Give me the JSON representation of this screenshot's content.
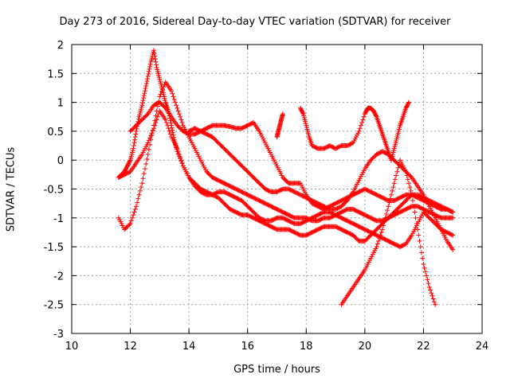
{
  "chart_data": {
    "type": "scatter",
    "title": "Day 273 of 2016, Sidereal Day-to-day VTEC variation (SDTVAR) for receiver",
    "xlabel": "GPS time / hours",
    "ylabel": "SDTVAR / TECUs",
    "xlim": [
      10,
      24
    ],
    "ylim": [
      -3,
      2
    ],
    "x_ticks": [
      "10",
      "12",
      "14",
      "16",
      "18",
      "20",
      "22",
      "24"
    ],
    "y_ticks": [
      "2",
      "1.5",
      "1",
      "0.5",
      "0",
      "-0.5",
      "-1",
      "-1.5",
      "-2",
      "-2.5",
      "-3"
    ],
    "grid": true,
    "marker": "+",
    "color": "#ff0000",
    "series": [
      {
        "x": [
          11.6,
          11.8,
          12.0,
          12.2,
          12.4,
          12.6,
          12.8,
          13.0,
          13.2,
          13.4,
          13.6,
          13.8,
          14.0,
          14.2,
          14.4,
          14.6,
          14.8,
          15.0,
          15.2,
          15.4,
          15.6,
          15.8,
          16.0,
          16.2,
          16.4,
          16.6,
          16.8,
          17.0,
          17.2,
          17.4,
          17.6,
          17.8,
          18.0,
          18.2,
          18.4,
          18.6,
          18.8,
          19.0,
          19.2,
          19.4,
          19.6,
          19.8,
          20.0,
          20.2,
          20.4,
          20.6,
          20.8,
          21.0,
          21.2,
          21.4,
          21.6,
          21.8,
          22.0,
          22.2,
          22.4,
          22.6,
          22.8,
          23.0
        ],
        "y": [
          -0.3,
          -0.25,
          -0.2,
          -0.05,
          0.1,
          0.3,
          0.55,
          0.85,
          0.7,
          0.4,
          0.2,
          -0.1,
          -0.3,
          -0.4,
          -0.5,
          -0.55,
          -0.6,
          -0.65,
          -0.75,
          -0.85,
          -0.9,
          -0.95,
          -0.95,
          -1.0,
          -1.05,
          -1.1,
          -1.15,
          -1.2,
          -1.2,
          -1.2,
          -1.25,
          -1.3,
          -1.3,
          -1.25,
          -1.2,
          -1.15,
          -1.15,
          -1.15,
          -1.2,
          -1.25,
          -1.3,
          -1.4,
          -1.4,
          -1.3,
          -1.2,
          -1.1,
          -1.0,
          -0.9,
          -0.8,
          -0.7,
          -0.6,
          -0.6,
          -0.65,
          -0.7,
          -0.75,
          -0.8,
          -0.85,
          -0.9
        ]
      },
      {
        "x": [
          11.6,
          11.7,
          11.8,
          11.9,
          12.0,
          12.1,
          12.2,
          12.3,
          12.4,
          12.5,
          12.6,
          12.7,
          12.8,
          12.9,
          13.0,
          13.1,
          13.2,
          13.3,
          13.4,
          13.5,
          13.6,
          13.8,
          14.0,
          14.2,
          14.4,
          14.6,
          14.8,
          15.0,
          15.2,
          15.4,
          15.6,
          15.8,
          16.0,
          16.2,
          16.4,
          16.6,
          16.8,
          17.0,
          17.2,
          17.4,
          17.6,
          17.8,
          18.0,
          18.2,
          18.4,
          18.6,
          18.8,
          19.0,
          19.2,
          19.4,
          19.6,
          19.8,
          20.0,
          20.2,
          20.4,
          20.6,
          20.8,
          21.0,
          21.2,
          21.4,
          21.6,
          21.8,
          22.0,
          22.2,
          22.4,
          22.6,
          22.8,
          23.0
        ],
        "y": [
          -0.3,
          -0.25,
          -0.2,
          -0.1,
          0.0,
          0.2,
          0.5,
          0.75,
          0.95,
          1.2,
          1.45,
          1.7,
          1.9,
          1.6,
          1.4,
          1.2,
          1.0,
          0.85,
          0.6,
          0.35,
          0.15,
          -0.1,
          -0.3,
          -0.45,
          -0.55,
          -0.6,
          -0.6,
          -0.55,
          -0.55,
          -0.6,
          -0.65,
          -0.7,
          -0.8,
          -0.9,
          -1.0,
          -1.05,
          -1.05,
          -1.0,
          -1.0,
          -1.05,
          -1.1,
          -1.1,
          -1.05,
          -1.0,
          -0.95,
          -0.9,
          -0.9,
          -0.95,
          -1.0,
          -1.05,
          -1.1,
          -1.15,
          -1.2,
          -1.25,
          -1.3,
          -1.35,
          -1.4,
          -1.45,
          -1.5,
          -1.45,
          -1.3,
          -1.1,
          -0.9,
          -1.0,
          -1.1,
          -1.2,
          -1.25,
          -1.3
        ]
      },
      {
        "x": [
          11.6,
          11.8,
          12.0,
          12.2,
          12.4,
          12.6,
          12.8,
          13.0,
          13.2,
          13.4,
          13.6,
          13.8,
          14.0,
          14.2,
          14.4,
          14.6,
          14.8,
          15.0,
          15.2,
          15.4,
          15.6,
          15.8,
          16.0,
          16.2,
          16.4,
          16.6,
          16.8,
          17.0,
          17.2,
          17.4,
          17.6,
          17.8,
          18.0,
          18.2,
          18.4,
          18.6,
          18.8,
          19.0,
          19.2,
          19.4,
          19.6,
          19.8,
          20.0,
          20.2,
          20.4,
          20.6,
          20.8,
          21.0,
          21.2,
          21.4,
          21.6,
          21.8,
          22.0,
          22.2,
          22.4,
          22.6,
          22.8,
          23.0
        ],
        "y": [
          -1.0,
          -1.2,
          -1.1,
          -0.8,
          -0.4,
          0.1,
          0.6,
          1.1,
          1.35,
          1.2,
          0.9,
          0.6,
          0.4,
          0.2,
          0.0,
          -0.2,
          -0.3,
          -0.35,
          -0.4,
          -0.45,
          -0.5,
          -0.55,
          -0.6,
          -0.65,
          -0.7,
          -0.75,
          -0.8,
          -0.85,
          -0.9,
          -0.95,
          -1.0,
          -1.0,
          -1.0,
          -1.05,
          -1.05,
          -1.0,
          -1.0,
          -0.95,
          -0.9,
          -0.85,
          -0.85,
          -0.9,
          -0.95,
          -1.0,
          -1.05,
          -1.05,
          -1.0,
          -0.95,
          -0.9,
          -0.85,
          -0.8,
          -0.8,
          -0.85,
          -0.9,
          -0.95,
          -1.0,
          -1.0,
          -1.0
        ]
      },
      {
        "x": [
          12.0,
          12.2,
          12.4,
          12.6,
          12.8,
          13.0,
          13.2,
          13.4,
          13.6,
          13.8,
          14.0,
          14.2,
          14.4,
          14.6,
          14.8,
          15.0,
          15.2,
          15.4,
          15.6,
          15.8,
          16.0,
          16.2,
          16.4,
          16.6,
          16.8,
          17.0,
          17.2,
          17.4,
          17.6,
          17.8,
          18.0,
          18.2,
          18.4,
          18.6,
          18.8,
          19.0,
          19.2,
          19.4,
          19.6,
          19.8,
          20.0,
          20.2,
          20.4,
          20.6,
          20.8,
          21.0,
          21.2,
          21.4,
          21.6,
          21.8,
          22.0,
          22.2,
          22.4,
          22.6,
          22.8,
          23.0
        ],
        "y": [
          0.5,
          0.6,
          0.7,
          0.8,
          0.95,
          1.0,
          0.9,
          0.75,
          0.6,
          0.5,
          0.45,
          0.45,
          0.5,
          0.55,
          0.6,
          0.6,
          0.6,
          0.58,
          0.55,
          0.55,
          0.6,
          0.65,
          0.5,
          0.3,
          0.1,
          -0.1,
          -0.3,
          -0.4,
          -0.4,
          -0.4,
          -0.6,
          -0.75,
          -0.8,
          -0.85,
          -0.8,
          -0.75,
          -0.7,
          -0.65,
          -0.6,
          -0.55,
          -0.5,
          -0.55,
          -0.6,
          -0.65,
          -0.7,
          -0.7,
          -0.65,
          -0.6,
          -0.6,
          -0.65,
          -0.7,
          -0.75,
          -0.8,
          -0.85,
          -0.85,
          -0.9
        ]
      },
      {
        "x": [
          14.0,
          14.2,
          14.4,
          14.6,
          14.8,
          15.0,
          15.2,
          15.4,
          15.6,
          15.8,
          16.0,
          16.2,
          16.4,
          16.6,
          16.8,
          17.0,
          17.2,
          17.4,
          17.6,
          17.8,
          18.0,
          18.2,
          18.4,
          18.6,
          18.8,
          19.0,
          19.2,
          19.4,
          19.6,
          19.8,
          20.0,
          20.2,
          20.4,
          20.6,
          20.8,
          21.0,
          21.2,
          21.4,
          21.6,
          21.8,
          22.0,
          22.2,
          22.4,
          22.6,
          22.8,
          23.0
        ],
        "y": [
          0.5,
          0.55,
          0.5,
          0.45,
          0.4,
          0.3,
          0.2,
          0.1,
          0.0,
          -0.1,
          -0.2,
          -0.3,
          -0.4,
          -0.5,
          -0.55,
          -0.55,
          -0.5,
          -0.5,
          -0.55,
          -0.6,
          -0.65,
          -0.7,
          -0.75,
          -0.8,
          -0.85,
          -0.85,
          -0.8,
          -0.7,
          -0.55,
          -0.35,
          -0.15,
          0.0,
          0.1,
          0.15,
          0.1,
          0.0,
          -0.1,
          -0.2,
          -0.3,
          -0.45,
          -0.6,
          -0.8,
          -1.0,
          -1.2,
          -1.4,
          -1.55
        ]
      },
      {
        "x": [
          17.8,
          17.9,
          18.0,
          18.1,
          18.2,
          18.4,
          18.6,
          18.8,
          19.0,
          19.2,
          19.4,
          19.6,
          19.8,
          20.0,
          20.1,
          20.2,
          20.3,
          20.4,
          20.5,
          20.6,
          20.7,
          20.8,
          20.9,
          21.0,
          21.1,
          21.2,
          21.3,
          21.4,
          21.5
        ],
        "y": [
          0.9,
          0.8,
          0.6,
          0.4,
          0.25,
          0.2,
          0.2,
          0.25,
          0.2,
          0.25,
          0.25,
          0.3,
          0.5,
          0.8,
          0.9,
          0.9,
          0.85,
          0.75,
          0.6,
          0.45,
          0.3,
          0.15,
          0.0,
          0.2,
          0.4,
          0.6,
          0.75,
          0.9,
          1.0
        ]
      },
      {
        "x": [
          17.0,
          17.05,
          17.1,
          17.15,
          17.2
        ],
        "y": [
          0.4,
          0.5,
          0.6,
          0.7,
          0.8
        ]
      },
      {
        "x": [
          19.2,
          19.4,
          19.6,
          19.8,
          20.0,
          20.2,
          20.4,
          20.6,
          20.8,
          21.0,
          21.2,
          21.4,
          21.6,
          21.8,
          22.0,
          22.2,
          22.4
        ],
        "y": [
          -2.5,
          -2.35,
          -2.2,
          -2.05,
          -1.9,
          -1.7,
          -1.5,
          -1.2,
          -0.8,
          -0.4,
          0.0,
          -0.2,
          -0.6,
          -1.2,
          -1.8,
          -2.2,
          -2.5
        ]
      }
    ]
  }
}
